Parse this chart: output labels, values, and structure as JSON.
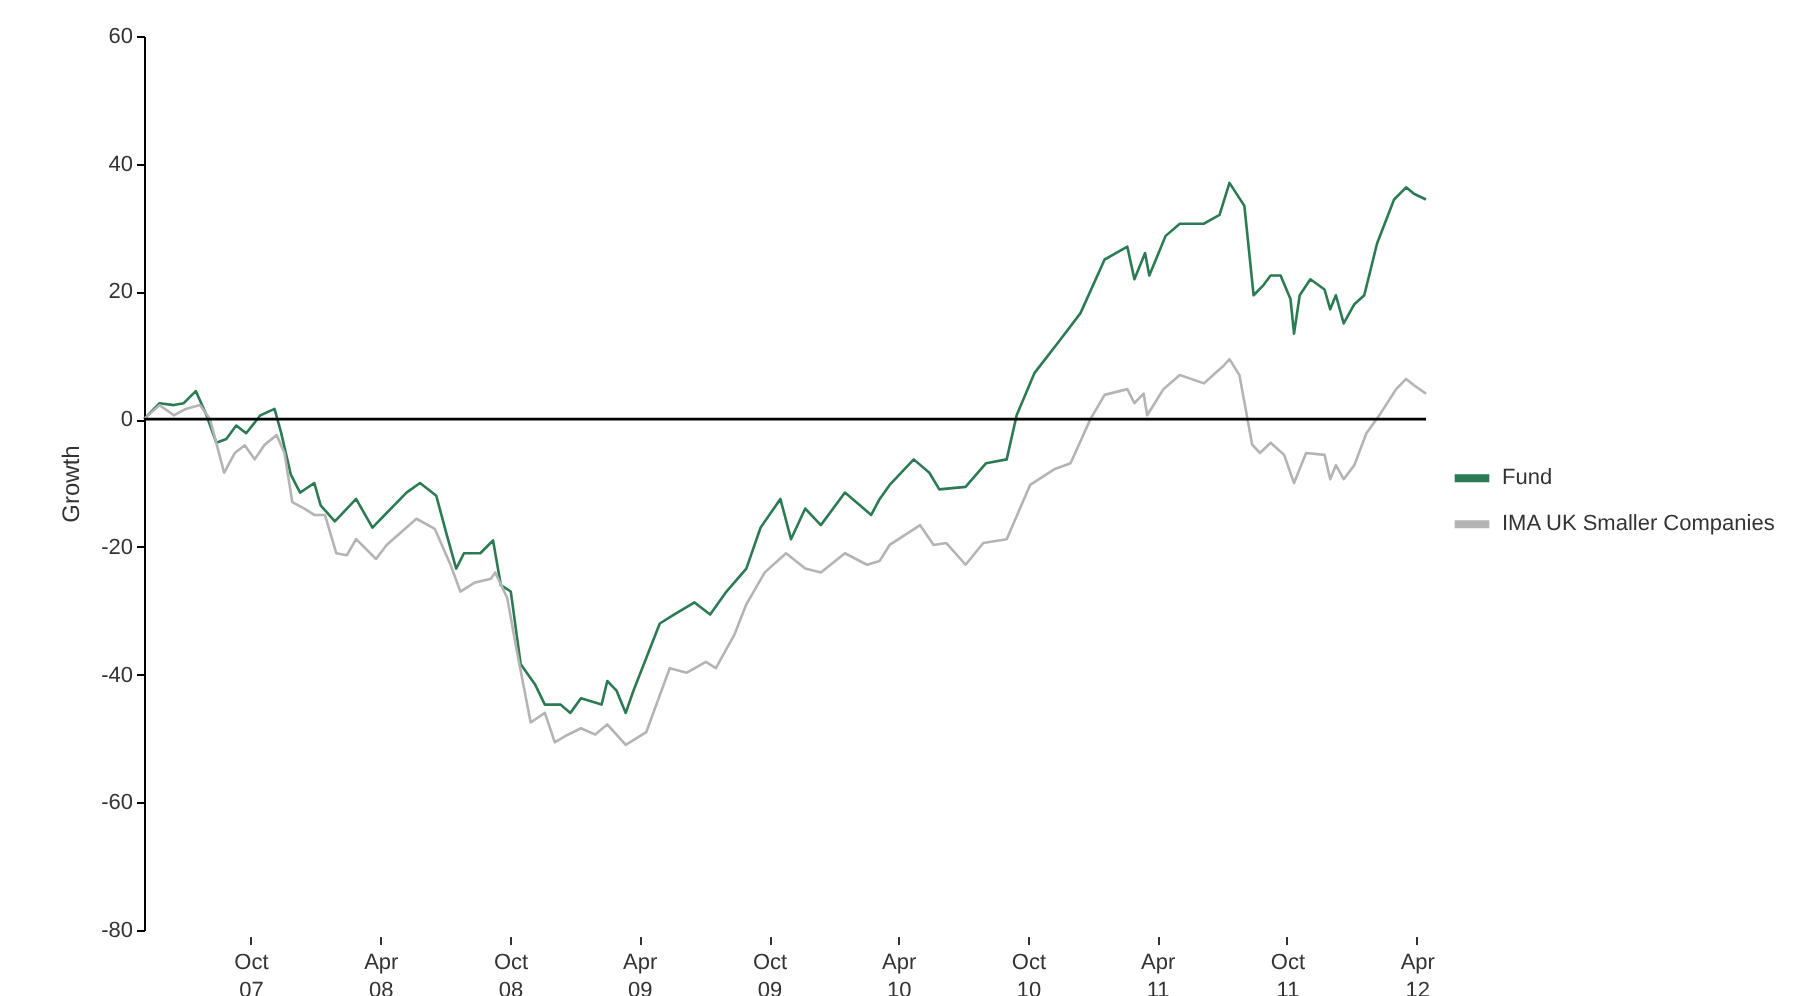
{
  "chart_data": {
    "type": "line",
    "ylabel": "Growth",
    "legend": "right",
    "grid": false,
    "marker": "none",
    "line_style": "solid",
    "xlim": [
      "2007-05-04",
      "2012-04-14"
    ],
    "xticks": [
      {
        "value": "2007-10-01",
        "label": "Oct 07"
      },
      {
        "value": "2008-04-01",
        "label": "Apr 08"
      },
      {
        "value": "2008-10-01",
        "label": "Oct 08"
      },
      {
        "value": "2009-04-01",
        "label": "Apr 09"
      },
      {
        "value": "2009-10-01",
        "label": "Oct 09"
      },
      {
        "value": "2010-04-01",
        "label": "Apr 10"
      },
      {
        "value": "2010-10-01",
        "label": "Oct 10"
      },
      {
        "value": "2011-04-01",
        "label": "Apr 11"
      },
      {
        "value": "2011-10-01",
        "label": "Oct 11"
      },
      {
        "value": "2012-04-01",
        "label": "Apr 12"
      }
    ],
    "ylim": [
      -80,
      60
    ],
    "yticks": [
      -80,
      -60,
      -40,
      -20,
      0,
      20,
      40,
      60
    ],
    "ref_lines": [
      {
        "axis": "y",
        "value": 0,
        "color": "#000000"
      }
    ],
    "series": [
      {
        "name": "Fund",
        "color": "#2a7a52",
        "x": [
          "2007-05-04",
          "2007-05-26",
          "2007-06-15",
          "2007-06-29",
          "2007-07-16",
          "2007-07-30",
          "2007-08-14",
          "2007-08-28",
          "2007-09-11",
          "2007-09-25",
          "2007-10-15",
          "2007-11-04",
          "2007-11-13",
          "2007-11-27",
          "2007-12-10",
          "2007-12-30",
          "2008-01-08",
          "2008-01-28",
          "2008-02-27",
          "2008-03-21",
          "2008-04-10",
          "2008-05-08",
          "2008-05-27",
          "2008-06-19",
          "2008-07-03",
          "2008-07-17",
          "2008-07-28",
          "2008-08-20",
          "2008-09-07",
          "2008-09-18",
          "2008-10-02",
          "2008-10-16",
          "2008-11-05",
          "2008-11-19",
          "2008-12-11",
          "2008-12-25",
          "2009-01-09",
          "2009-02-07",
          "2009-02-15",
          "2009-02-28",
          "2009-03-13",
          "2009-03-24",
          "2009-04-30",
          "2009-05-20",
          "2009-06-18",
          "2009-07-10",
          "2009-08-02",
          "2009-08-30",
          "2009-09-19",
          "2009-10-17",
          "2009-11-01",
          "2009-11-21",
          "2009-12-13",
          "2010-01-16",
          "2010-02-22",
          "2010-03-06",
          "2010-03-20",
          "2010-04-23",
          "2010-05-15",
          "2010-05-29",
          "2010-07-05",
          "2010-08-03",
          "2010-09-01",
          "2010-09-15",
          "2010-10-10",
          "2010-11-16",
          "2010-12-14",
          "2011-01-17",
          "2011-02-18",
          "2011-02-28",
          "2011-03-15",
          "2011-03-21",
          "2011-04-13",
          "2011-05-03",
          "2011-06-06",
          "2011-06-28",
          "2011-07-12",
          "2011-08-02",
          "2011-08-15",
          "2011-08-29",
          "2011-09-08",
          "2011-09-22",
          "2011-10-06",
          "2011-10-11",
          "2011-10-19",
          "2011-11-03",
          "2011-11-23",
          "2011-12-01",
          "2011-12-09",
          "2011-12-20",
          "2012-01-04",
          "2012-01-18",
          "2012-02-05",
          "2012-02-29",
          "2012-03-17",
          "2012-03-28",
          "2012-04-14"
        ],
        "values": [
          0,
          2.5,
          2.2,
          2.5,
          4.4,
          0.9,
          -3.7,
          -3.1,
          -1,
          -2.2,
          0.6,
          1.6,
          -2,
          -8.7,
          -11.5,
          -10,
          -13.5,
          -16,
          -12.5,
          -17,
          -14.7,
          -11.5,
          -10,
          -12,
          -17.8,
          -23.4,
          -21,
          -21,
          -19,
          -26,
          -27,
          -38.4,
          -41.5,
          -44.7,
          -44.7,
          -46,
          -43.7,
          -44.7,
          -41,
          -42.5,
          -46,
          -42.5,
          -32,
          -30.6,
          -28.7,
          -30.6,
          -27,
          -23.4,
          -17,
          -12.5,
          -18.8,
          -14,
          -16.6,
          -11.5,
          -15,
          -12.5,
          -10.3,
          -6.3,
          -8.4,
          -11,
          -10.6,
          -6.9,
          -6.3,
          0.6,
          7.2,
          12.5,
          16.6,
          25,
          27,
          21.9,
          26,
          22.5,
          28.7,
          30.6,
          30.6,
          32,
          37,
          33.4,
          19.4,
          21,
          22.5,
          22.5,
          18.8,
          13.4,
          19.4,
          21.9,
          20.3,
          17.2,
          19.4,
          15,
          18,
          19.4,
          27.5,
          34.4,
          36.3,
          35.3,
          34.4
        ]
      },
      {
        "name": "IMA UK Smaller Companies",
        "color": "#b4b4b4",
        "x": [
          "2007-05-04",
          "2007-05-26",
          "2007-06-15",
          "2007-07-02",
          "2007-07-22",
          "2007-08-05",
          "2007-08-25",
          "2007-09-09",
          "2007-09-23",
          "2007-10-07",
          "2007-10-21",
          "2007-11-07",
          "2007-11-18",
          "2007-11-29",
          "2007-12-16",
          "2007-12-30",
          "2008-01-14",
          "2008-01-30",
          "2008-02-14",
          "2008-02-27",
          "2008-03-26",
          "2008-04-10",
          "2008-05-22",
          "2008-06-17",
          "2008-07-09",
          "2008-07-23",
          "2008-08-12",
          "2008-09-04",
          "2008-09-10",
          "2008-09-27",
          "2008-10-10",
          "2008-10-30",
          "2008-11-19",
          "2008-12-03",
          "2008-12-20",
          "2009-01-09",
          "2009-01-29",
          "2009-02-15",
          "2009-03-13",
          "2009-04-11",
          "2009-05-14",
          "2009-06-07",
          "2009-07-04",
          "2009-07-18",
          "2009-08-13",
          "2009-08-30",
          "2009-09-25",
          "2009-10-25",
          "2009-11-21",
          "2009-12-13",
          "2010-01-16",
          "2010-02-16",
          "2010-03-06",
          "2010-03-20",
          "2010-05-02",
          "2010-05-21",
          "2010-06-08",
          "2010-07-05",
          "2010-07-30",
          "2010-09-01",
          "2010-10-04",
          "2010-11-08",
          "2010-11-30",
          "2010-12-28",
          "2011-01-17",
          "2011-02-18",
          "2011-02-28",
          "2011-03-13",
          "2011-03-18",
          "2011-04-10",
          "2011-05-03",
          "2011-06-06",
          "2011-07-04",
          "2011-07-12",
          "2011-07-26",
          "2011-08-13",
          "2011-08-24",
          "2011-09-08",
          "2011-09-27",
          "2011-10-11",
          "2011-10-28",
          "2011-11-23",
          "2011-12-01",
          "2011-12-09",
          "2011-12-20",
          "2012-01-04",
          "2012-01-21",
          "2012-02-10",
          "2012-03-03",
          "2012-03-17",
          "2012-03-28",
          "2012-04-14"
        ],
        "values": [
          0,
          2.2,
          0.6,
          1.6,
          2.2,
          0,
          -8.4,
          -5.3,
          -4.1,
          -6.3,
          -4,
          -2.5,
          -5.3,
          -13,
          -14,
          -15,
          -15,
          -21,
          -21.3,
          -18.8,
          -21.9,
          -19.7,
          -15.6,
          -17.2,
          -22.8,
          -27,
          -25.6,
          -25,
          -24,
          -28,
          -36,
          -47.5,
          -46,
          -50.6,
          -49.5,
          -48.4,
          -49.4,
          -47.8,
          -51,
          -49,
          -39,
          -39.7,
          -38,
          -39,
          -33.8,
          -29,
          -24,
          -21,
          -23.4,
          -24,
          -21,
          -22.8,
          -22.2,
          -19.7,
          -16.6,
          -19.7,
          -19.4,
          -22.8,
          -19.4,
          -18.8,
          -10.3,
          -7.8,
          -6.9,
          0,
          3.8,
          4.7,
          2.5,
          4,
          0.6,
          4.7,
          6.9,
          5.6,
          8.4,
          9.4,
          6.9,
          -4,
          -5.3,
          -3.7,
          -5.6,
          -10,
          -5.3,
          -5.6,
          -9.4,
          -7.2,
          -9.4,
          -7.2,
          -2.2,
          0.9,
          4.7,
          6.3,
          5.3,
          4
        ]
      }
    ]
  }
}
